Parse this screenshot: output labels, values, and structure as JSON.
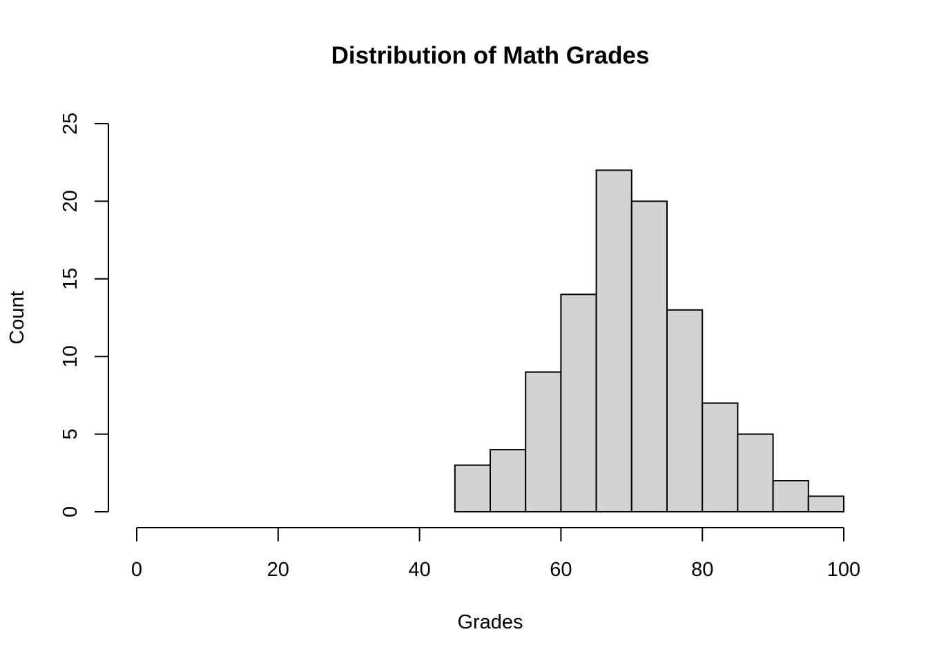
{
  "chart_data": {
    "type": "bar",
    "subtype": "histogram",
    "title": "Distribution of Math Grades",
    "xlabel": "Grades",
    "ylabel": "Count",
    "xlim": [
      0,
      100
    ],
    "ylim": [
      0,
      25
    ],
    "x_ticks": [
      0,
      20,
      40,
      60,
      80,
      100
    ],
    "y_ticks": [
      0,
      5,
      10,
      15,
      20,
      25
    ],
    "bins": [
      {
        "start": 45,
        "end": 50,
        "count": 3
      },
      {
        "start": 50,
        "end": 55,
        "count": 4
      },
      {
        "start": 55,
        "end": 60,
        "count": 9
      },
      {
        "start": 60,
        "end": 65,
        "count": 14
      },
      {
        "start": 65,
        "end": 70,
        "count": 22
      },
      {
        "start": 70,
        "end": 75,
        "count": 20
      },
      {
        "start": 75,
        "end": 80,
        "count": 13
      },
      {
        "start": 80,
        "end": 85,
        "count": 7
      },
      {
        "start": 85,
        "end": 90,
        "count": 5
      },
      {
        "start": 90,
        "end": 95,
        "count": 2
      },
      {
        "start": 95,
        "end": 100,
        "count": 1
      }
    ],
    "bar_color": "#d3d3d3",
    "edge_color": "#000000",
    "grid": false,
    "legend": "none"
  }
}
